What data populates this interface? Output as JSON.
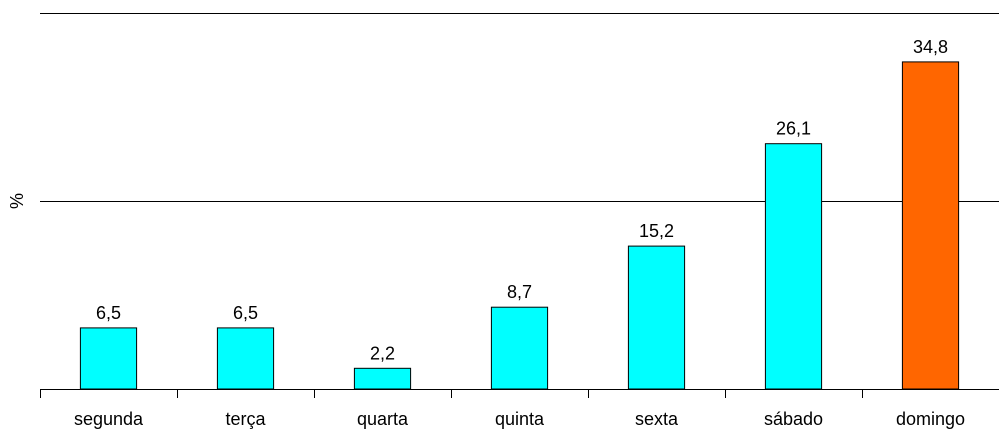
{
  "chart_data": {
    "type": "bar",
    "ylabel": "%",
    "categories": [
      "segunda",
      "terça",
      "quarta",
      "quinta",
      "sexta",
      "sábado",
      "domingo"
    ],
    "values": [
      6.5,
      6.5,
      2.2,
      8.7,
      15.2,
      26.1,
      34.8
    ],
    "value_labels": [
      "6,5",
      "6,5",
      "2,2",
      "8,7",
      "15,2",
      "26,1",
      "34,8"
    ],
    "ylim": [
      0,
      40
    ],
    "gridlines": [
      20,
      40
    ],
    "grid": true,
    "legend": "none",
    "colors": {
      "default": "#00FFFF",
      "highlight": "#FF6600",
      "highlight_index": 6
    }
  }
}
